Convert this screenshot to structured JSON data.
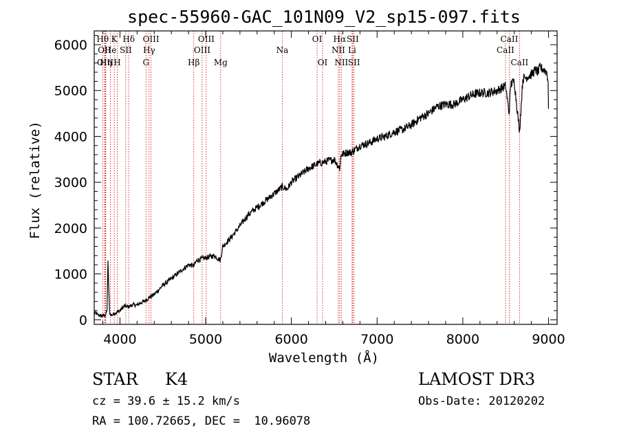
{
  "chart_data": {
    "type": "line",
    "title": "spec-55960-GAC_101N09_V2_sp15-097.fits",
    "xlabel": "Wavelength (Å)",
    "ylabel": "Flux (relative)",
    "xlim": [
      3700,
      9100
    ],
    "ylim": [
      -100,
      6300
    ],
    "xticks": [
      4000,
      5000,
      6000,
      7000,
      8000,
      9000
    ],
    "yticks": [
      0,
      1000,
      2000,
      3000,
      4000,
      5000,
      6000
    ],
    "series": [
      {
        "name": "flux",
        "x": [
          3700,
          3780,
          3830,
          3850,
          3860,
          3880,
          3900,
          3950,
          4000,
          4050,
          4100,
          4150,
          4200,
          4250,
          4300,
          4350,
          4400,
          4450,
          4500,
          4600,
          4700,
          4800,
          4861,
          4900,
          5000,
          5100,
          5172,
          5200,
          5300,
          5400,
          5500,
          5600,
          5700,
          5800,
          5893,
          5950,
          6000,
          6100,
          6200,
          6300,
          6400,
          6500,
          6563,
          6580,
          6650,
          6700,
          6800,
          6900,
          7000,
          7100,
          7200,
          7300,
          7400,
          7500,
          7600,
          7700,
          7800,
          7900,
          8000,
          8100,
          8200,
          8300,
          8400,
          8500,
          8540,
          8560,
          8600,
          8662,
          8700,
          8800,
          8850,
          8880,
          8900,
          8950,
          8980,
          8995,
          9000
        ],
        "y": [
          150,
          80,
          100,
          200,
          1250,
          150,
          100,
          150,
          200,
          300,
          280,
          330,
          320,
          380,
          420,
          500,
          550,
          650,
          750,
          900,
          1050,
          1200,
          1180,
          1300,
          1350,
          1400,
          1300,
          1600,
          1800,
          2050,
          2300,
          2450,
          2600,
          2750,
          2900,
          2850,
          3000,
          3150,
          3300,
          3400,
          3450,
          3500,
          3300,
          3600,
          3650,
          3650,
          3800,
          3850,
          3950,
          4000,
          4100,
          4150,
          4250,
          4400,
          4500,
          4650,
          4700,
          4700,
          4800,
          4900,
          4950,
          4950,
          5000,
          5100,
          4500,
          5150,
          5200,
          4100,
          5250,
          5350,
          5450,
          5400,
          5500,
          5450,
          5400,
          5200,
          4600
        ]
      }
    ],
    "lines": [
      {
        "wave": 3798,
        "label": "Hθ",
        "row": 0
      },
      {
        "wave": 3820,
        "label": "OII",
        "row": 1
      },
      {
        "wave": 3829,
        "label": "OIII",
        "row": 2
      },
      {
        "wave": 3835,
        "label": "Hη",
        "row": 2
      },
      {
        "wave": 3889,
        "label": "He",
        "row": 1
      },
      {
        "wave": 3934,
        "label": "K",
        "row": 0
      },
      {
        "wave": 3969,
        "label": "H",
        "row": 2
      },
      {
        "wave": 4068,
        "label": "SII",
        "row": 1
      },
      {
        "wave": 4102,
        "label": "Hδ",
        "row": 0
      },
      {
        "wave": 4304,
        "label": "G",
        "row": 2
      },
      {
        "wave": 4340,
        "label": "Hγ",
        "row": 1
      },
      {
        "wave": 4363,
        "label": "OIII",
        "row": 0
      },
      {
        "wave": 4861,
        "label": "Hβ",
        "row": 2
      },
      {
        "wave": 4959,
        "label": "OIII",
        "row": 1
      },
      {
        "wave": 5007,
        "label": "OIII",
        "row": 0
      },
      {
        "wave": 5175,
        "label": "Mg",
        "row": 2
      },
      {
        "wave": 5894,
        "label": "Na",
        "row": 1
      },
      {
        "wave": 6300,
        "label": "OI",
        "row": 0
      },
      {
        "wave": 6364,
        "label": "OI",
        "row": 2
      },
      {
        "wave": 6548,
        "label": "NII",
        "row": 1
      },
      {
        "wave": 6563,
        "label": "Hα",
        "row": 0
      },
      {
        "wave": 6583,
        "label": "NII",
        "row": 2
      },
      {
        "wave": 6708,
        "label": "Li",
        "row": 1
      },
      {
        "wave": 6716,
        "label": "SII",
        "row": 0
      },
      {
        "wave": 6731,
        "label": "SII",
        "row": 2
      },
      {
        "wave": 8498,
        "label": "CaII",
        "row": 1
      },
      {
        "wave": 8542,
        "label": "CaII",
        "row": 0
      },
      {
        "wave": 8662,
        "label": "CaII",
        "row": 2
      }
    ]
  },
  "info": {
    "class": "STAR",
    "subclass": "K4",
    "cz": "cz = 39.6 ± 15.2 km/s",
    "radec": "RA = 100.72665, DEC =  10.96078",
    "survey": "LAMOST DR3",
    "obs_date": "Obs-Date: 20120202"
  }
}
